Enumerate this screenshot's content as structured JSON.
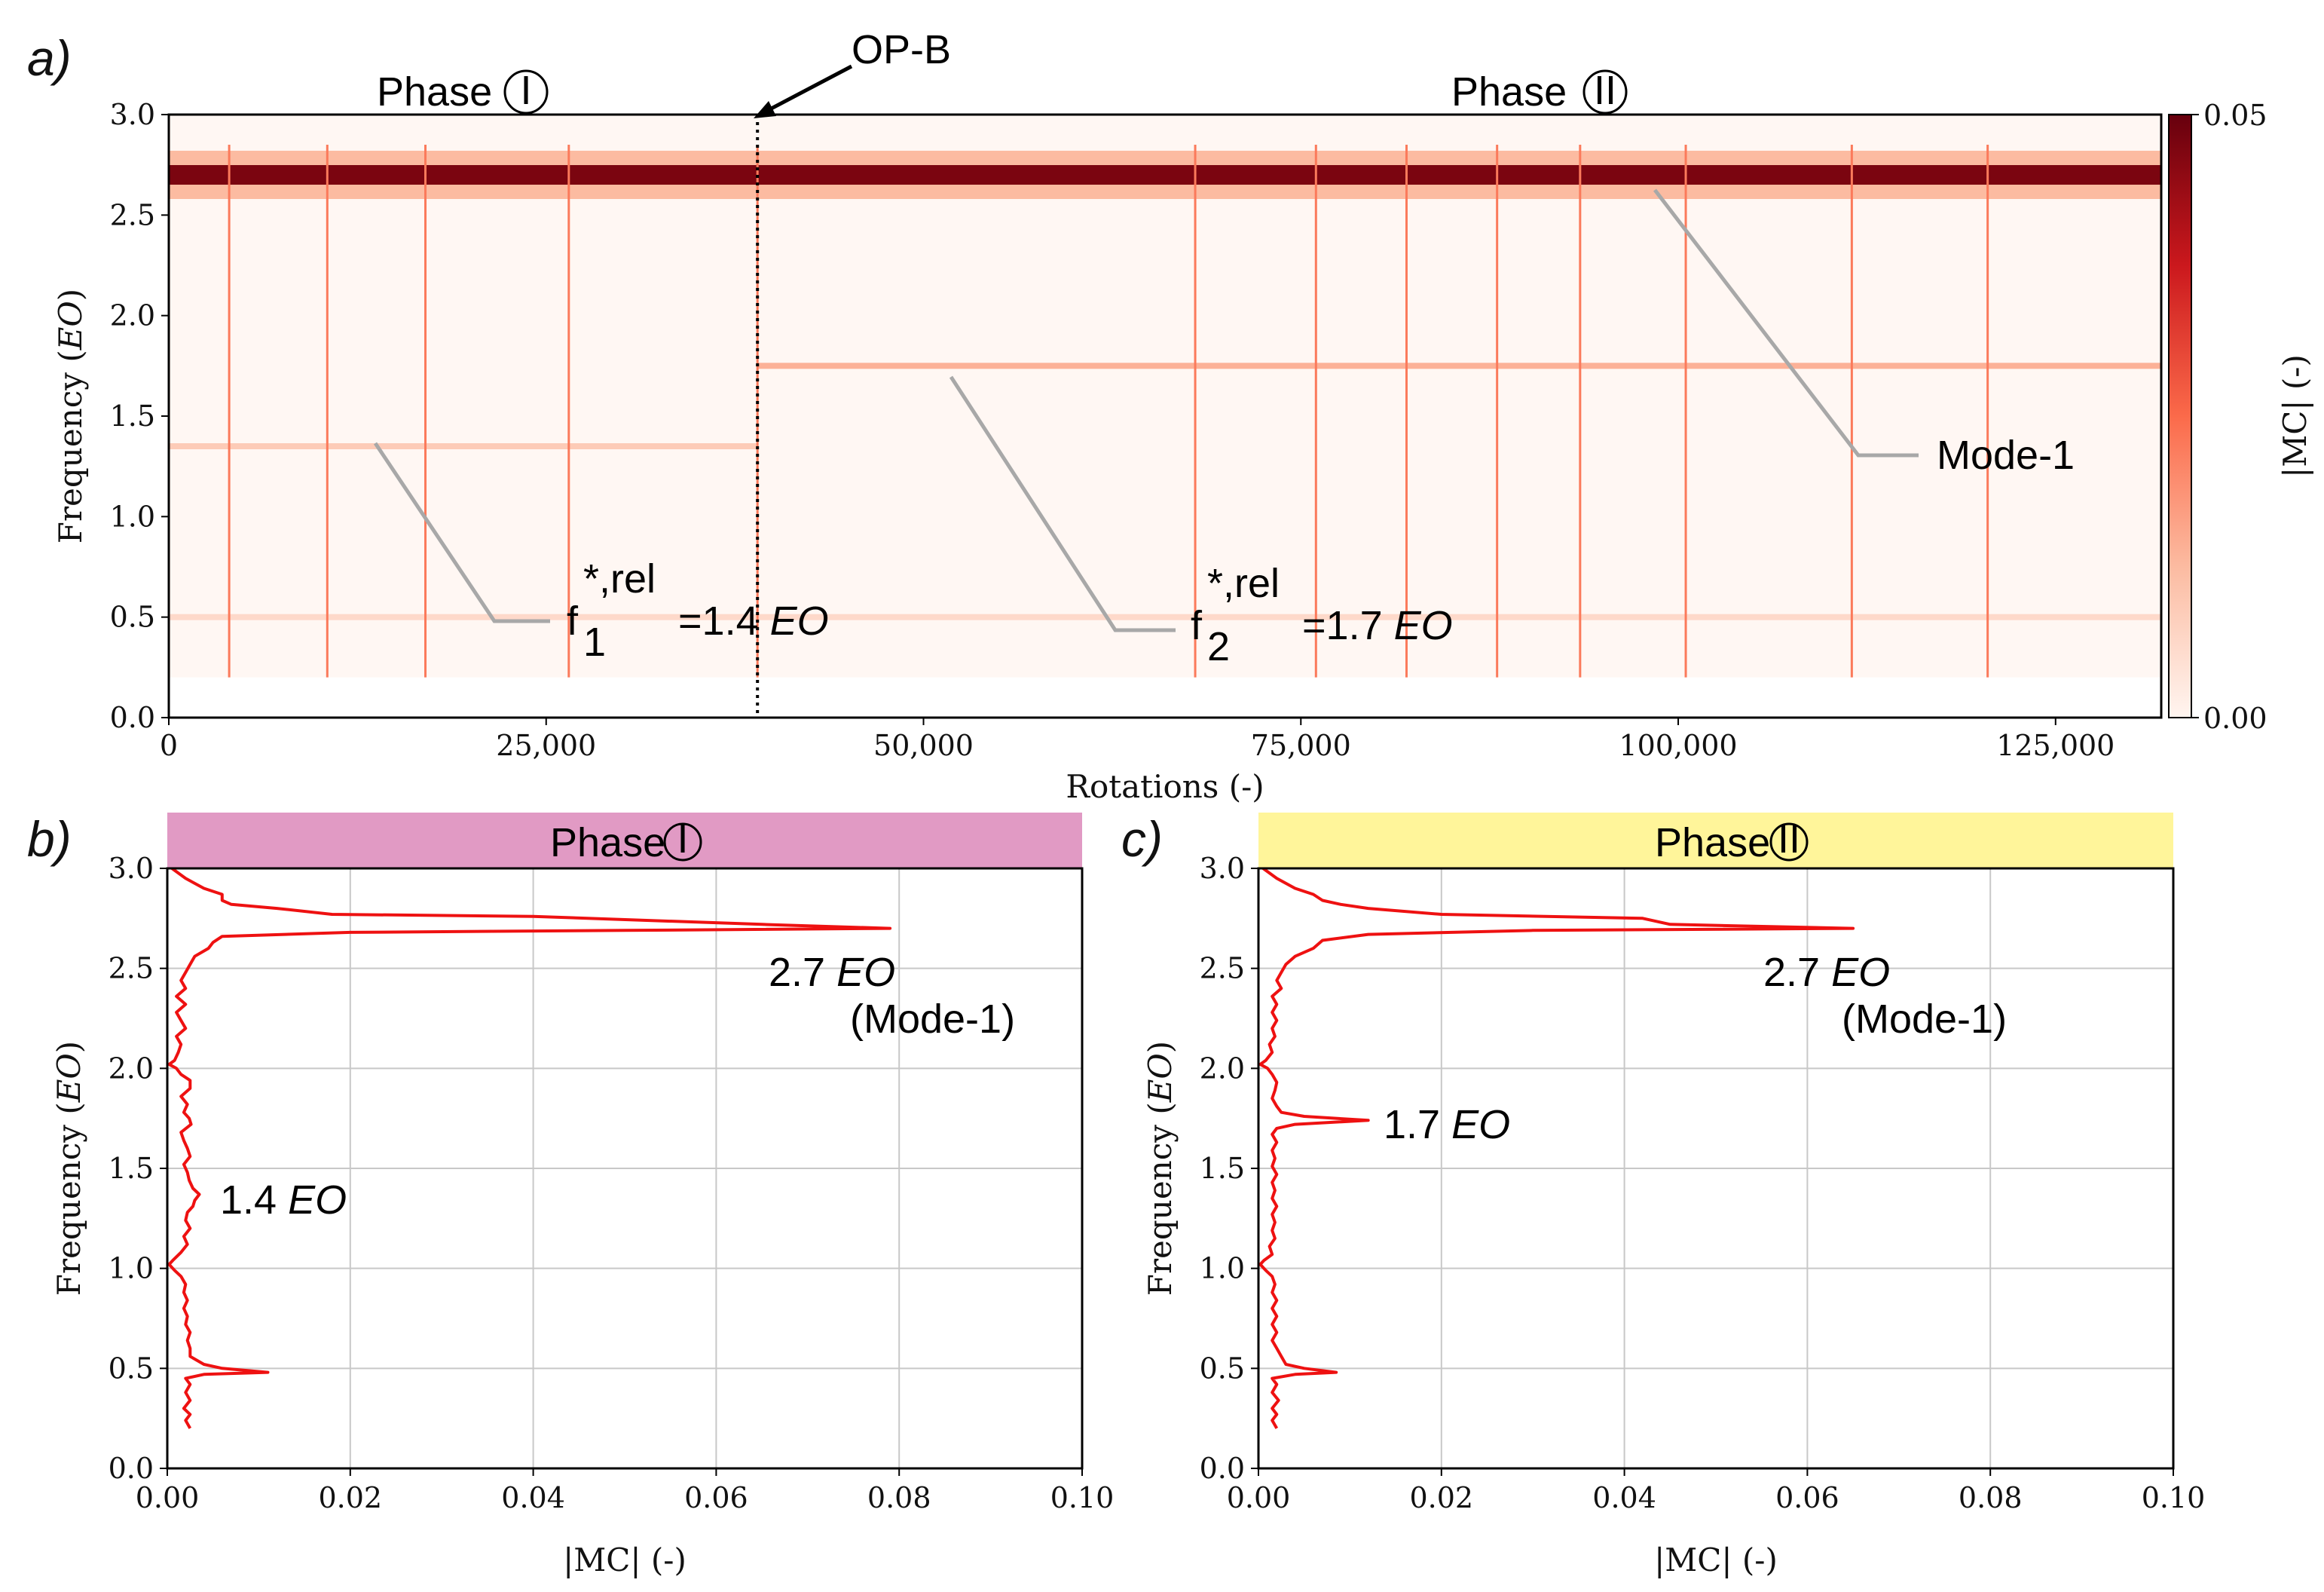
{
  "figure": {
    "panel_a_letter": "a)",
    "panel_b_letter": "b)",
    "panel_c_letter": "c)",
    "colors": {
      "line": "#ee1111",
      "heat_low": "#fff5f0",
      "heat_high": "#67000d",
      "phase1_band": "#e19ac4",
      "phase2_band": "#fff59a",
      "leader": "#a8a8a8"
    }
  },
  "chart_data": [
    {
      "id": "a",
      "type": "heatmap",
      "title": "",
      "xlabel": "Rotations (-)",
      "ylabel": "Frequency (EO)",
      "xlim": [
        0,
        132000
      ],
      "ylim": [
        0,
        3.0
      ],
      "xticks": [
        0,
        25000,
        50000,
        75000,
        100000,
        125000
      ],
      "xtick_labels": [
        "0",
        "25,000",
        "50,000",
        "75,000",
        "100,000",
        "125,000"
      ],
      "yticks": [
        0.0,
        0.5,
        1.0,
        1.5,
        2.0,
        2.5,
        3.0
      ],
      "ytick_labels": [
        "0.0",
        "0.5",
        "1.0",
        "1.5",
        "2.0",
        "2.5",
        "3.0"
      ],
      "data_freq_min": 0.2,
      "colorbar": {
        "label": "|MC| (-)",
        "min": 0.0,
        "max": 0.05,
        "tick_labels": [
          "0.00",
          "0.05"
        ]
      },
      "bands": [
        {
          "name": "Mode-1",
          "freq": 2.7,
          "x_start": 0,
          "x_end": 132000,
          "intensity": 0.95
        },
        {
          "name": "f1 rel",
          "freq": 1.35,
          "x_start": 0,
          "x_end": 39000,
          "intensity": 0.18
        },
        {
          "name": "f2 rel",
          "freq": 1.75,
          "x_start": 39000,
          "x_end": 132000,
          "intensity": 0.28
        },
        {
          "name": "0.5 band",
          "freq": 0.5,
          "x_start": 0,
          "x_end": 132000,
          "intensity": 0.12
        }
      ],
      "vertical_events": [
        4000,
        10500,
        17000,
        26500,
        39000,
        68000,
        76000,
        82000,
        88000,
        93500,
        100500,
        111500,
        120500
      ],
      "op_b_marker": 39000,
      "annotations": {
        "phase1": "Phase",
        "phase1_numeral": "I",
        "phase2": "Phase",
        "phase2_numeral": "II",
        "op_b": "OP-B",
        "mode1": "Mode-1",
        "f1_base": "f",
        "f1_sup": "*,rel",
        "f1_sub": "1",
        "f1_value": "=1.4 ",
        "f1_unit": "EO",
        "f2_base": "f",
        "f2_sup": "*,rel",
        "f2_sub": "2",
        "f2_value": "=1.7 ",
        "f2_unit": "EO"
      }
    },
    {
      "id": "b",
      "type": "line",
      "header": "Phase",
      "header_numeral": "I",
      "xlabel": "|MC| (-)",
      "ylabel": "Frequency (EO)",
      "xlim": [
        0,
        0.1
      ],
      "ylim": [
        0,
        3.0
      ],
      "xticks": [
        0.0,
        0.02,
        0.04,
        0.06,
        0.08,
        0.1
      ],
      "xtick_labels": [
        "0.00",
        "0.02",
        "0.04",
        "0.06",
        "0.08",
        "0.10"
      ],
      "yticks": [
        0.0,
        0.5,
        1.0,
        1.5,
        2.0,
        2.5,
        3.0
      ],
      "ytick_labels": [
        "0.0",
        "0.5",
        "1.0",
        "1.5",
        "2.0",
        "2.5",
        "3.0"
      ],
      "series": [
        {
          "name": "|MC| Phase I",
          "points": [
            [
              0.0005,
              3.0
            ],
            [
              0.002,
              2.95
            ],
            [
              0.004,
              2.9
            ],
            [
              0.006,
              2.87
            ],
            [
              0.006,
              2.84
            ],
            [
              0.007,
              2.82
            ],
            [
              0.012,
              2.8
            ],
            [
              0.018,
              2.77
            ],
            [
              0.04,
              2.76
            ],
            [
              0.065,
              2.72
            ],
            [
              0.079,
              2.7
            ],
            [
              0.05,
              2.69
            ],
            [
              0.02,
              2.68
            ],
            [
              0.006,
              2.66
            ],
            [
              0.005,
              2.63
            ],
            [
              0.0045,
              2.6
            ],
            [
              0.003,
              2.56
            ],
            [
              0.0025,
              2.52
            ],
            [
              0.002,
              2.48
            ],
            [
              0.0015,
              2.44
            ],
            [
              0.002,
              2.4
            ],
            [
              0.001,
              2.36
            ],
            [
              0.002,
              2.32
            ],
            [
              0.001,
              2.28
            ],
            [
              0.0015,
              2.24
            ],
            [
              0.002,
              2.2
            ],
            [
              0.001,
              2.16
            ],
            [
              0.0015,
              2.12
            ],
            [
              0.0012,
              2.08
            ],
            [
              0.0008,
              2.04
            ],
            [
              0.0002,
              2.02
            ],
            [
              0.001,
              2.0
            ],
            [
              0.0015,
              1.97
            ],
            [
              0.0025,
              1.94
            ],
            [
              0.0025,
              1.9
            ],
            [
              0.0015,
              1.86
            ],
            [
              0.0022,
              1.82
            ],
            [
              0.0018,
              1.78
            ],
            [
              0.0024,
              1.75
            ],
            [
              0.0026,
              1.72
            ],
            [
              0.0015,
              1.68
            ],
            [
              0.0018,
              1.64
            ],
            [
              0.0022,
              1.6
            ],
            [
              0.0025,
              1.56
            ],
            [
              0.0018,
              1.52
            ],
            [
              0.0022,
              1.48
            ],
            [
              0.0024,
              1.44
            ],
            [
              0.0028,
              1.4
            ],
            [
              0.0035,
              1.37
            ],
            [
              0.003,
              1.34
            ],
            [
              0.0028,
              1.31
            ],
            [
              0.0022,
              1.28
            ],
            [
              0.002,
              1.24
            ],
            [
              0.0025,
              1.2
            ],
            [
              0.0018,
              1.16
            ],
            [
              0.0022,
              1.12
            ],
            [
              0.0015,
              1.08
            ],
            [
              0.0006,
              1.04
            ],
            [
              0.0002,
              1.02
            ],
            [
              0.0008,
              0.99
            ],
            [
              0.0015,
              0.96
            ],
            [
              0.002,
              0.92
            ],
            [
              0.0018,
              0.88
            ],
            [
              0.0022,
              0.84
            ],
            [
              0.0018,
              0.8
            ],
            [
              0.0022,
              0.76
            ],
            [
              0.002,
              0.72
            ],
            [
              0.0025,
              0.68
            ],
            [
              0.0022,
              0.64
            ],
            [
              0.0025,
              0.6
            ],
            [
              0.0025,
              0.56
            ],
            [
              0.004,
              0.52
            ],
            [
              0.006,
              0.5
            ],
            [
              0.011,
              0.48
            ],
            [
              0.004,
              0.47
            ],
            [
              0.002,
              0.45
            ],
            [
              0.0025,
              0.42
            ],
            [
              0.002,
              0.38
            ],
            [
              0.0025,
              0.34
            ],
            [
              0.0018,
              0.3
            ],
            [
              0.0025,
              0.27
            ],
            [
              0.002,
              0.24
            ],
            [
              0.0025,
              0.2
            ]
          ]
        }
      ],
      "annotations": {
        "peak": "2.7 ",
        "peak_unit": "EO",
        "peak_mode": "(Mode-1)",
        "minor": "1.4 ",
        "minor_unit": "EO"
      }
    },
    {
      "id": "c",
      "type": "line",
      "header": "Phase",
      "header_numeral": "II",
      "xlabel": "|MC| (-)",
      "ylabel": "Frequency (EO)",
      "xlim": [
        0,
        0.1
      ],
      "ylim": [
        0,
        3.0
      ],
      "xticks": [
        0.0,
        0.02,
        0.04,
        0.06,
        0.08,
        0.1
      ],
      "xtick_labels": [
        "0.00",
        "0.02",
        "0.04",
        "0.06",
        "0.08",
        "0.10"
      ],
      "yticks": [
        0.0,
        0.5,
        1.0,
        1.5,
        2.0,
        2.5,
        3.0
      ],
      "ytick_labels": [
        "0.0",
        "0.5",
        "1.0",
        "1.5",
        "2.0",
        "2.5",
        "3.0"
      ],
      "series": [
        {
          "name": "|MC| Phase II",
          "points": [
            [
              0.0005,
              3.0
            ],
            [
              0.002,
              2.95
            ],
            [
              0.004,
              2.9
            ],
            [
              0.006,
              2.87
            ],
            [
              0.007,
              2.84
            ],
            [
              0.009,
              2.82
            ],
            [
              0.012,
              2.8
            ],
            [
              0.02,
              2.77
            ],
            [
              0.042,
              2.75
            ],
            [
              0.045,
              2.72
            ],
            [
              0.065,
              2.7
            ],
            [
              0.03,
              2.69
            ],
            [
              0.012,
              2.67
            ],
            [
              0.007,
              2.64
            ],
            [
              0.006,
              2.6
            ],
            [
              0.004,
              2.56
            ],
            [
              0.003,
              2.52
            ],
            [
              0.0025,
              2.48
            ],
            [
              0.002,
              2.44
            ],
            [
              0.0025,
              2.4
            ],
            [
              0.0015,
              2.36
            ],
            [
              0.002,
              2.32
            ],
            [
              0.0015,
              2.28
            ],
            [
              0.002,
              2.24
            ],
            [
              0.0015,
              2.2
            ],
            [
              0.0018,
              2.16
            ],
            [
              0.0012,
              2.12
            ],
            [
              0.0015,
              2.08
            ],
            [
              0.0008,
              2.04
            ],
            [
              0.0002,
              2.02
            ],
            [
              0.001,
              2.0
            ],
            [
              0.0015,
              1.97
            ],
            [
              0.002,
              1.93
            ],
            [
              0.0018,
              1.89
            ],
            [
              0.0015,
              1.85
            ],
            [
              0.002,
              1.81
            ],
            [
              0.0025,
              1.78
            ],
            [
              0.005,
              1.76
            ],
            [
              0.012,
              1.74
            ],
            [
              0.004,
              1.72
            ],
            [
              0.002,
              1.7
            ],
            [
              0.0015,
              1.67
            ],
            [
              0.002,
              1.63
            ],
            [
              0.0015,
              1.59
            ],
            [
              0.0018,
              1.55
            ],
            [
              0.0015,
              1.51
            ],
            [
              0.002,
              1.47
            ],
            [
              0.0015,
              1.43
            ],
            [
              0.0018,
              1.39
            ],
            [
              0.0015,
              1.35
            ],
            [
              0.002,
              1.31
            ],
            [
              0.0015,
              1.27
            ],
            [
              0.0018,
              1.23
            ],
            [
              0.0015,
              1.19
            ],
            [
              0.0018,
              1.15
            ],
            [
              0.0012,
              1.11
            ],
            [
              0.0015,
              1.07
            ],
            [
              0.0006,
              1.04
            ],
            [
              0.0002,
              1.02
            ],
            [
              0.0008,
              0.99
            ],
            [
              0.0015,
              0.96
            ],
            [
              0.0018,
              0.92
            ],
            [
              0.0015,
              0.88
            ],
            [
              0.002,
              0.84
            ],
            [
              0.0015,
              0.8
            ],
            [
              0.002,
              0.76
            ],
            [
              0.0015,
              0.72
            ],
            [
              0.002,
              0.68
            ],
            [
              0.0015,
              0.64
            ],
            [
              0.002,
              0.6
            ],
            [
              0.0025,
              0.56
            ],
            [
              0.003,
              0.52
            ],
            [
              0.005,
              0.5
            ],
            [
              0.0085,
              0.48
            ],
            [
              0.004,
              0.47
            ],
            [
              0.0015,
              0.45
            ],
            [
              0.002,
              0.42
            ],
            [
              0.0015,
              0.38
            ],
            [
              0.0022,
              0.34
            ],
            [
              0.0015,
              0.3
            ],
            [
              0.002,
              0.27
            ],
            [
              0.0015,
              0.24
            ],
            [
              0.002,
              0.2
            ]
          ]
        }
      ],
      "annotations": {
        "peak": "2.7 ",
        "peak_unit": "EO",
        "peak_mode": "(Mode-1)",
        "minor": "1.7 ",
        "minor_unit": "EO"
      }
    }
  ]
}
